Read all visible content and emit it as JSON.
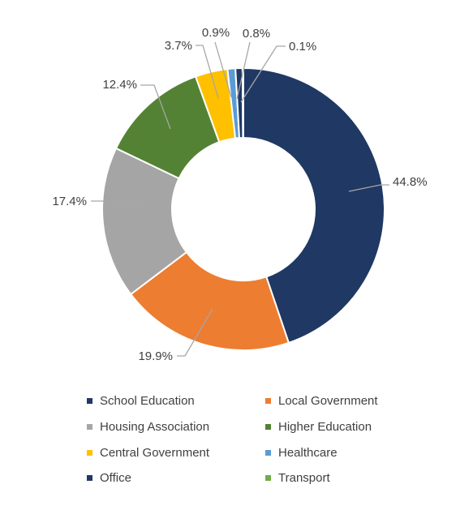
{
  "chart_data": {
    "type": "pie",
    "donut": true,
    "categories": [
      "School Education",
      "Local Government",
      "Housing Association",
      "Higher Education",
      "Central Government",
      "Healthcare",
      "Office",
      "Transport"
    ],
    "values": [
      44.8,
      19.9,
      17.4,
      12.4,
      3.7,
      0.9,
      0.8,
      0.1
    ],
    "data_labels": [
      "44.8%",
      "19.9%",
      "17.4%",
      "12.4%",
      "3.7%",
      "0.9%",
      "0.8%",
      "0.1%"
    ],
    "colors": [
      "#1F3864",
      "#ED7D31",
      "#A5A5A5",
      "#548235",
      "#FFC000",
      "#5B9BD5",
      "#1F3864",
      "#70AD47"
    ],
    "legend": "bottom",
    "title": ""
  }
}
